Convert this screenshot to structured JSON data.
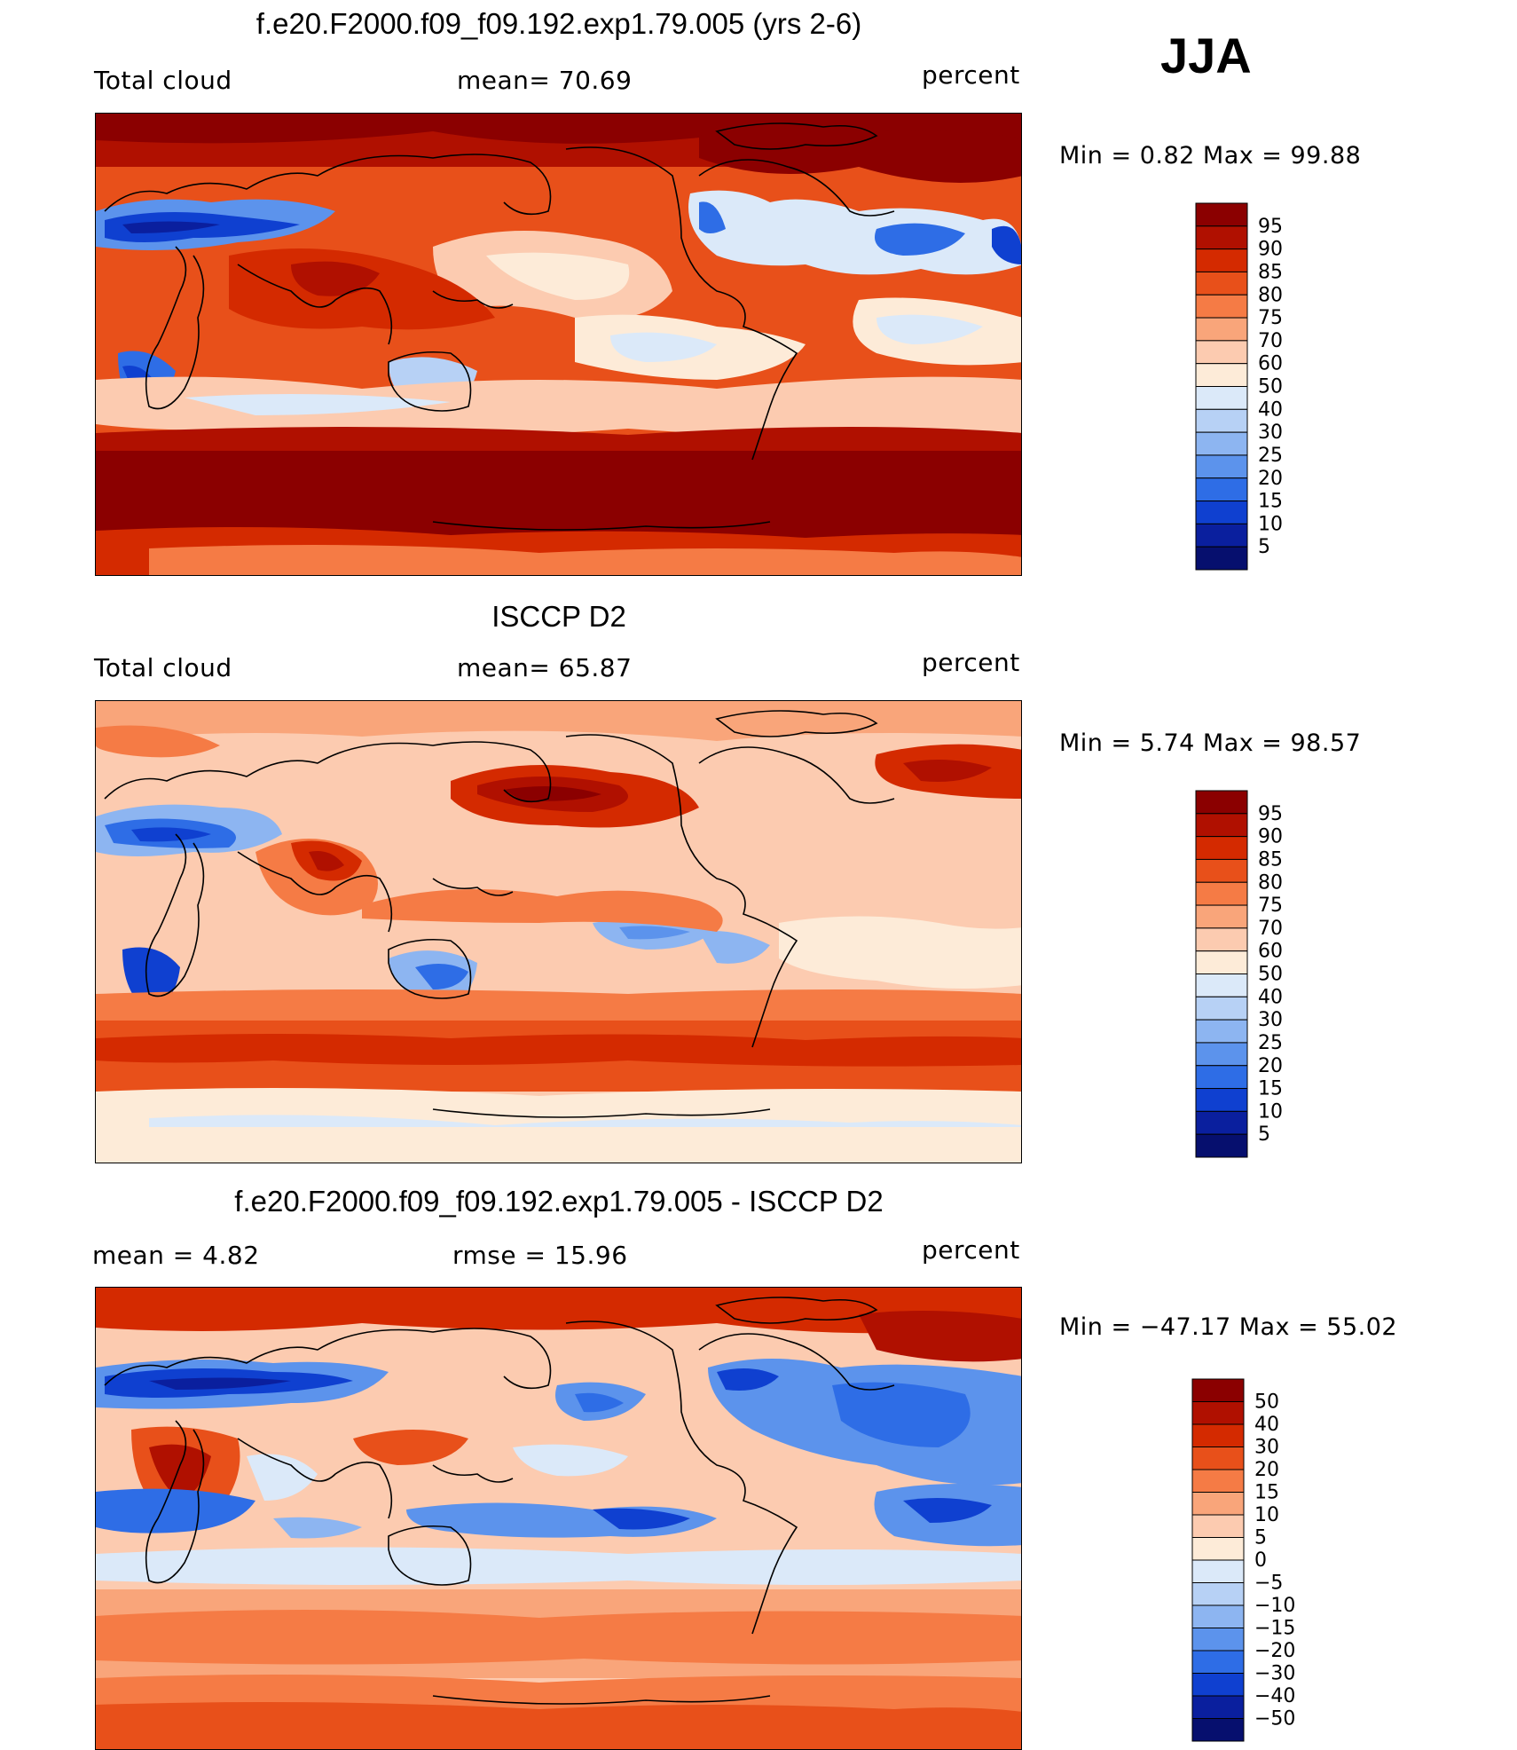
{
  "season": "JJA",
  "panels": [
    {
      "title": "f.e20.F2000.f09_f09.192.exp1.79.005 (yrs 2-6)",
      "left_label": "Total cloud",
      "center_label": "mean=   70.69",
      "right_label": "percent",
      "minmax": "Min =     0.82  Max  =    99.88",
      "colorbar_labels": [
        "95",
        "90",
        "85",
        "80",
        "75",
        "70",
        "60",
        "50",
        "40",
        "30",
        "25",
        "20",
        "15",
        "10",
        "5"
      ],
      "colors": [
        "#8b0000",
        "#b01000",
        "#d42a00",
        "#e8501a",
        "#f57b45",
        "#f9a57a",
        "#fccbb0",
        "#fdebd8",
        "#dbe9f9",
        "#b7d1f5",
        "#8db5f1",
        "#5c93ec",
        "#2e6de6",
        "#0f40d0",
        "#0a1f9e",
        "#060f6e"
      ]
    },
    {
      "title": "ISCCP D2",
      "left_label": "Total cloud",
      "center_label": "mean=   65.87",
      "right_label": "percent",
      "minmax": "Min =     5.74  Max  =    98.57",
      "colorbar_labels": [
        "95",
        "90",
        "85",
        "80",
        "75",
        "70",
        "60",
        "50",
        "40",
        "30",
        "25",
        "20",
        "15",
        "10",
        "5"
      ],
      "colors": [
        "#8b0000",
        "#b01000",
        "#d42a00",
        "#e8501a",
        "#f57b45",
        "#f9a57a",
        "#fccbb0",
        "#fdebd8",
        "#dbe9f9",
        "#b7d1f5",
        "#8db5f1",
        "#5c93ec",
        "#2e6de6",
        "#0f40d0",
        "#0a1f9e",
        "#060f6e"
      ]
    },
    {
      "title": "f.e20.F2000.f09_f09.192.exp1.79.005 - ISCCP D2",
      "left_label": "mean  =     4.82",
      "center_label": "rmse  =    15.96",
      "right_label": "percent",
      "minmax": "Min  = −47.17  Max  =    55.02",
      "colorbar_labels": [
        "50",
        "40",
        "30",
        "20",
        "15",
        "10",
        "5",
        "0",
        "−5",
        "−10",
        "−15",
        "−20",
        "−30",
        "−40",
        "−50"
      ],
      "colors": [
        "#8b0000",
        "#b01000",
        "#d42a00",
        "#e8501a",
        "#f57b45",
        "#f9a57a",
        "#fccbb0",
        "#fdebd8",
        "#dbe9f9",
        "#b7d1f5",
        "#8db5f1",
        "#5c93ec",
        "#2e6de6",
        "#0f40d0",
        "#0a1f9e",
        "#060f6e"
      ]
    }
  ]
}
